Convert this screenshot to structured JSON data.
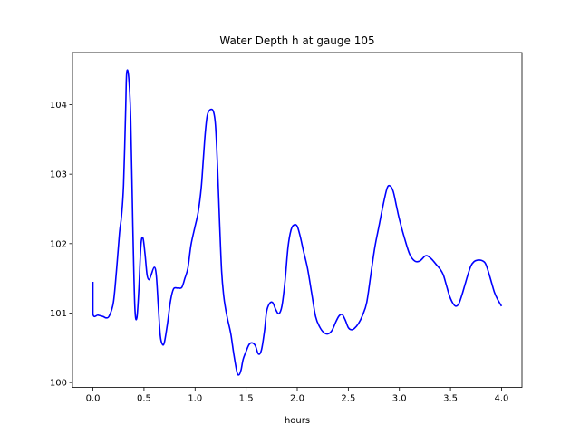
{
  "chart_data": {
    "type": "line",
    "title": "Water Depth h at gauge 105",
    "xlabel": "hours",
    "ylabel": "",
    "xlim": [
      -0.2,
      4.2
    ],
    "ylim": [
      99.93,
      104.75
    ],
    "xticks": [
      {
        "value": 0.0,
        "label": "0.0"
      },
      {
        "value": 0.5,
        "label": "0.5"
      },
      {
        "value": 1.0,
        "label": "1.0"
      },
      {
        "value": 1.5,
        "label": "1.5"
      },
      {
        "value": 2.0,
        "label": "2.0"
      },
      {
        "value": 2.5,
        "label": "2.5"
      },
      {
        "value": 3.0,
        "label": "3.0"
      },
      {
        "value": 3.5,
        "label": "3.5"
      },
      {
        "value": 4.0,
        "label": "4.0"
      }
    ],
    "yticks": [
      {
        "value": 100,
        "label": "100"
      },
      {
        "value": 101,
        "label": "101"
      },
      {
        "value": 102,
        "label": "102"
      },
      {
        "value": 103,
        "label": "103"
      },
      {
        "value": 104,
        "label": "104"
      }
    ],
    "grid": false,
    "series": [
      {
        "color": "#0000ff",
        "x": [
          0.0,
          0.0,
          0.05,
          0.1,
          0.13,
          0.16,
          0.2,
          0.23,
          0.26,
          0.28,
          0.3,
          0.32,
          0.33,
          0.35,
          0.37,
          0.39,
          0.41,
          0.43,
          0.45,
          0.47,
          0.49,
          0.51,
          0.53,
          0.55,
          0.57,
          0.6,
          0.62,
          0.64,
          0.66,
          0.68,
          0.7,
          0.73,
          0.76,
          0.79,
          0.83,
          0.87,
          0.9,
          0.93,
          0.96,
          1.0,
          1.03,
          1.06,
          1.08,
          1.1,
          1.12,
          1.15,
          1.18,
          1.2,
          1.22,
          1.24,
          1.26,
          1.28,
          1.3,
          1.32,
          1.35,
          1.38,
          1.41,
          1.43,
          1.45,
          1.47,
          1.5,
          1.53,
          1.56,
          1.59,
          1.62,
          1.65,
          1.68,
          1.7,
          1.73,
          1.76,
          1.79,
          1.82,
          1.85,
          1.88,
          1.91,
          1.94,
          1.97,
          2.0,
          2.03,
          2.06,
          2.1,
          2.14,
          2.18,
          2.22,
          2.26,
          2.3,
          2.34,
          2.38,
          2.41,
          2.44,
          2.47,
          2.5,
          2.53,
          2.56,
          2.6,
          2.64,
          2.68,
          2.72,
          2.76,
          2.8,
          2.84,
          2.88,
          2.91,
          2.94,
          2.97,
          3.0,
          3.05,
          3.1,
          3.15,
          3.2,
          3.25,
          3.28,
          3.32,
          3.36,
          3.4,
          3.43,
          3.46,
          3.49,
          3.52,
          3.55,
          3.58,
          3.61,
          3.64,
          3.67,
          3.7,
          3.73,
          3.76,
          3.8,
          3.84,
          3.87,
          3.9,
          3.93,
          3.96,
          4.0
        ],
        "y": [
          101.45,
          100.99,
          100.97,
          100.95,
          100.93,
          100.96,
          101.15,
          101.6,
          102.15,
          102.4,
          102.85,
          103.9,
          104.45,
          104.4,
          103.8,
          102.3,
          101.1,
          100.93,
          101.35,
          101.98,
          102.08,
          101.85,
          101.55,
          101.48,
          101.55,
          101.66,
          101.55,
          101.1,
          100.67,
          100.55,
          100.58,
          100.85,
          101.18,
          101.35,
          101.36,
          101.37,
          101.5,
          101.65,
          101.98,
          102.25,
          102.45,
          102.8,
          103.2,
          103.6,
          103.85,
          103.93,
          103.9,
          103.7,
          103.1,
          102.3,
          101.6,
          101.25,
          101.05,
          100.9,
          100.7,
          100.4,
          100.15,
          100.11,
          100.18,
          100.33,
          100.45,
          100.55,
          100.57,
          100.53,
          100.41,
          100.47,
          100.75,
          101.02,
          101.14,
          101.15,
          101.05,
          100.99,
          101.1,
          101.45,
          101.95,
          102.2,
          102.27,
          102.25,
          102.1,
          101.9,
          101.65,
          101.3,
          100.95,
          100.8,
          100.72,
          100.7,
          100.75,
          100.88,
          100.96,
          100.98,
          100.9,
          100.79,
          100.76,
          100.78,
          100.85,
          100.97,
          101.15,
          101.55,
          101.95,
          102.25,
          102.55,
          102.8,
          102.83,
          102.75,
          102.55,
          102.35,
          102.08,
          101.85,
          101.75,
          101.75,
          101.82,
          101.82,
          101.77,
          101.7,
          101.63,
          101.55,
          101.4,
          101.25,
          101.15,
          101.1,
          101.13,
          101.25,
          101.4,
          101.55,
          101.68,
          101.74,
          101.76,
          101.76,
          101.72,
          101.6,
          101.45,
          101.3,
          101.2,
          101.1
        ]
      }
    ]
  }
}
